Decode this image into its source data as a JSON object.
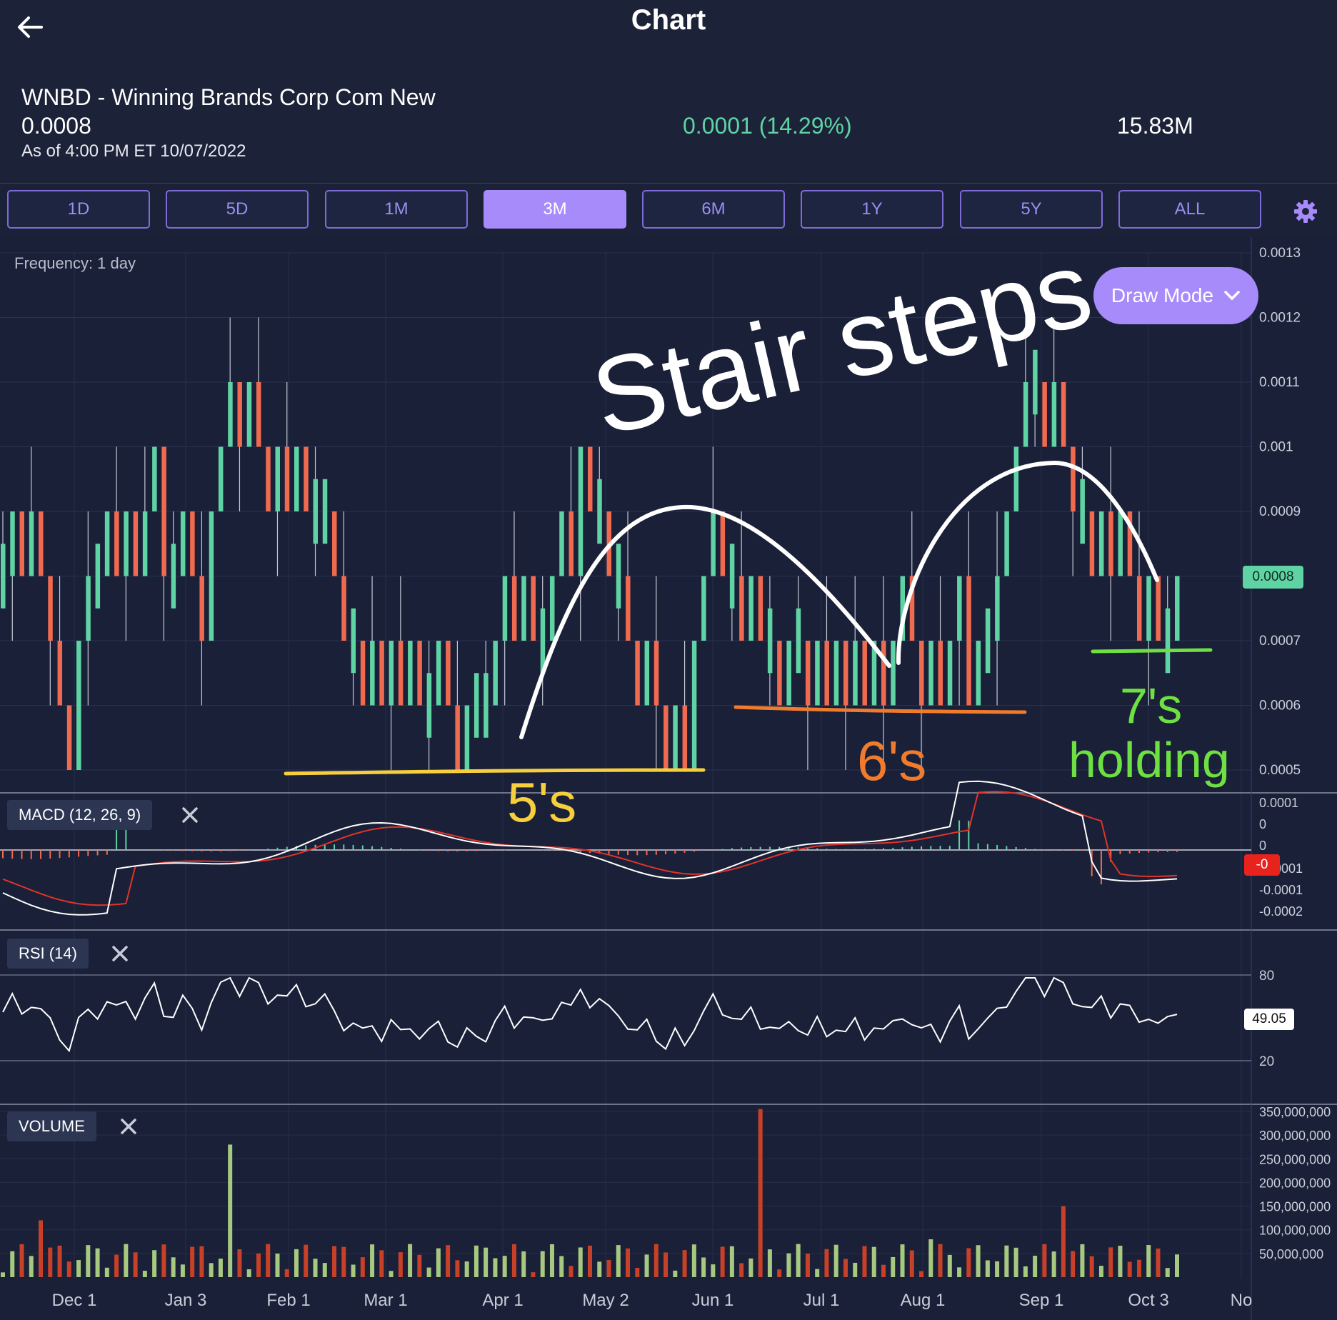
{
  "header": {
    "title": "Chart",
    "symbol_line": "WNBD - Winning Brands Corp Com New",
    "price": "0.0008",
    "as_of": "As of 4:00 PM ET 10/07/2022",
    "change": "0.0001 (14.29%)",
    "volume": "15.83M"
  },
  "tabs": [
    {
      "label": "1D",
      "active": false
    },
    {
      "label": "5D",
      "active": false
    },
    {
      "label": "1M",
      "active": false
    },
    {
      "label": "3M",
      "active": true
    },
    {
      "label": "6M",
      "active": false
    },
    {
      "label": "1Y",
      "active": false
    },
    {
      "label": "5Y",
      "active": false
    },
    {
      "label": "ALL",
      "active": false
    }
  ],
  "toolbar": {
    "frequency": "Frequency: 1 day",
    "draw_mode": "Draw Mode"
  },
  "colors": {
    "up": "#5fd3a4",
    "down": "#f06a4f",
    "accent": "#a78bfa",
    "bg": "#192038"
  },
  "annotations": {
    "headline": "Stair steps",
    "level_5": "5's",
    "level_6": "6's",
    "level_7_line1": "7's",
    "level_7_line2": "holding"
  },
  "chart_data": [
    {
      "type": "candlestick",
      "panel": "price",
      "y_ticks": [
        "0.0013",
        "0.0012",
        "0.0011",
        "0.001",
        "0.0009",
        "0.0008",
        "0.0007",
        "0.0006",
        "0.0005"
      ],
      "ylim": [
        0.0005,
        0.0013
      ],
      "last_value_label": "0.0008",
      "x_ticks": [
        "Dec 1",
        "Jan 3",
        "Feb 1",
        "Mar 1",
        "Apr 1",
        "May 2",
        "Jun 1",
        "Jul 1",
        "Aug 1",
        "Sep 1",
        "Oct 3",
        "No"
      ],
      "close_path": [
        0.0008,
        0.0009,
        0.0008,
        0.0009,
        0.0008,
        0.0007,
        0.0006,
        0.0005,
        0.0007,
        0.0008,
        0.0008,
        0.0009,
        0.0008,
        0.0009,
        0.0008,
        0.0009,
        0.001,
        0.0008,
        0.0008,
        0.0009,
        0.0008,
        0.0007,
        0.0009,
        0.001,
        0.0011,
        0.001,
        0.0011,
        0.001,
        0.0009,
        0.001,
        0.0009,
        0.001,
        0.0009,
        0.0009,
        0.0009,
        0.0008,
        0.0007,
        0.0007,
        0.0006,
        0.0007,
        0.0006,
        0.0007,
        0.0006,
        0.0007,
        0.0006,
        0.0006,
        0.0007,
        0.0006,
        0.0005,
        0.0006,
        0.0006,
        0.0006,
        0.0007,
        0.0008,
        0.0007,
        0.0008,
        0.0007,
        0.0007,
        0.0008,
        0.0009,
        0.0008,
        0.001,
        0.0009,
        0.0009,
        0.0008,
        0.0008,
        0.0007,
        0.0006,
        0.0007,
        0.0006,
        0.0005,
        0.0006,
        0.0005,
        0.0007,
        0.0008,
        0.0009,
        0.0008,
        0.0008,
        0.0007,
        0.0008,
        0.0007,
        0.0007,
        0.0006,
        0.0007,
        0.0007,
        0.0006,
        0.0007,
        0.0006,
        0.0007,
        0.0006,
        0.0007,
        0.0006,
        0.0007,
        0.0006,
        0.0007,
        0.0008,
        0.0007,
        0.0006,
        0.0007,
        0.0006,
        0.0007,
        0.0008,
        0.0006,
        0.0007,
        0.0007,
        0.0008,
        0.0009,
        0.001,
        0.0011,
        0.0011,
        0.001,
        0.0011,
        0.001,
        0.0009,
        0.0009,
        0.0008,
        0.0009,
        0.0008,
        0.0009,
        0.0008,
        0.0007,
        0.0008,
        0.0007,
        0.0007,
        0.0008
      ]
    },
    {
      "type": "line",
      "panel": "macd",
      "label": "MACD (12, 26, 9)",
      "y_ticks": [
        "0.0001",
        "0",
        "0",
        "-0.0001",
        "-0.0001",
        "-0.0002"
      ],
      "last_value_label": "-0"
    },
    {
      "type": "line",
      "panel": "rsi",
      "label": "RSI (14)",
      "y_ticks": [
        "80",
        "20"
      ],
      "ylim": [
        20,
        80
      ],
      "last_value_label": "49.05"
    },
    {
      "type": "bar",
      "panel": "volume",
      "label": "VOLUME",
      "y_ticks": [
        "350,000,000",
        "300,000,000",
        "250,000,000",
        "200,000,000",
        "150,000,000",
        "100,000,000",
        "50,000,000"
      ],
      "ylim": [
        0,
        350000000
      ]
    }
  ]
}
